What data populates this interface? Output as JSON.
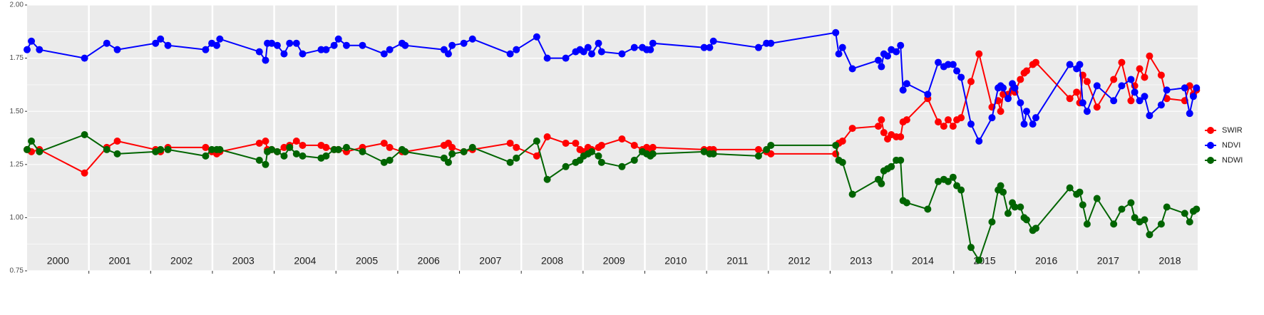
{
  "chart_data": {
    "type": "line",
    "x": [
      2000.0,
      2000.07,
      2000.2,
      2000.93,
      2001.29,
      2001.46,
      2002.08,
      2002.16,
      2002.28,
      2002.89,
      2002.99,
      2003.07,
      2003.12,
      2003.76,
      2003.86,
      2003.89,
      2003.96,
      2004.05,
      2004.16,
      2004.25,
      2004.36,
      2004.46,
      2004.76,
      2004.84,
      2004.97,
      2005.04,
      2005.17,
      2005.43,
      2005.78,
      2005.87,
      2006.07,
      2006.12,
      2006.75,
      2006.82,
      2006.88,
      2007.07,
      2007.21,
      2007.82,
      2007.92,
      2008.25,
      2008.42,
      2008.72,
      2008.88,
      2008.95,
      2009.01,
      2009.08,
      2009.14,
      2009.25,
      2009.3,
      2009.63,
      2009.83,
      2009.96,
      2010.03,
      2010.09,
      2010.13,
      2010.96,
      2011.05,
      2011.11,
      2011.84,
      2011.97,
      2012.04,
      2013.09,
      2013.14,
      2013.2,
      2013.36,
      2013.78,
      2013.83,
      2013.87,
      2013.93,
      2013.99,
      2014.07,
      2014.14,
      2014.18,
      2014.24,
      2014.58,
      2014.75,
      2014.84,
      2014.91,
      2014.99,
      2015.05,
      2015.12,
      2015.28,
      2015.41,
      2015.62,
      2015.72,
      2015.76,
      2015.8,
      2015.88,
      2015.95,
      2015.99,
      2016.08,
      2016.14,
      2016.18,
      2016.28,
      2016.33,
      2016.88,
      2016.99,
      2017.04,
      2017.09,
      2017.16,
      2017.32,
      2017.59,
      2017.72,
      2017.87,
      2017.93,
      2018.01,
      2018.09,
      2018.17,
      2018.36,
      2018.45,
      2018.74,
      2018.82,
      2018.88,
      2018.93
    ],
    "series": [
      {
        "name": "SWIR",
        "color": "#ff0000",
        "values": [
          1.32,
          1.31,
          1.32,
          1.21,
          1.33,
          1.36,
          1.32,
          1.31,
          1.33,
          1.33,
          1.31,
          1.3,
          1.31,
          1.35,
          1.36,
          1.32,
          1.32,
          1.31,
          1.33,
          1.34,
          1.36,
          1.34,
          1.34,
          1.33,
          1.32,
          1.32,
          1.31,
          1.33,
          1.35,
          1.33,
          1.31,
          1.31,
          1.34,
          1.35,
          1.33,
          1.31,
          1.32,
          1.35,
          1.33,
          1.29,
          1.38,
          1.35,
          1.35,
          1.32,
          1.31,
          1.33,
          1.32,
          1.33,
          1.34,
          1.37,
          1.34,
          1.32,
          1.33,
          1.32,
          1.33,
          1.32,
          1.32,
          1.32,
          1.32,
          1.31,
          1.3,
          1.3,
          1.35,
          1.36,
          1.42,
          1.43,
          1.46,
          1.4,
          1.37,
          1.39,
          1.38,
          1.38,
          1.45,
          1.46,
          1.56,
          1.45,
          1.43,
          1.46,
          1.43,
          1.46,
          1.47,
          1.64,
          1.77,
          1.52,
          1.55,
          1.5,
          1.58,
          1.58,
          1.6,
          1.59,
          1.65,
          1.68,
          1.69,
          1.72,
          1.73,
          1.56,
          1.59,
          1.54,
          1.67,
          1.64,
          1.52,
          1.65,
          1.73,
          1.55,
          1.62,
          1.7,
          1.66,
          1.76,
          1.67,
          1.56,
          1.55,
          1.62,
          1.58,
          1.6
        ]
      },
      {
        "name": "NDVI",
        "color": "#0000ff",
        "values": [
          1.79,
          1.83,
          1.79,
          1.75,
          1.82,
          1.79,
          1.82,
          1.84,
          1.81,
          1.79,
          1.82,
          1.81,
          1.84,
          1.78,
          1.74,
          1.82,
          1.82,
          1.81,
          1.77,
          1.82,
          1.82,
          1.77,
          1.79,
          1.79,
          1.81,
          1.84,
          1.81,
          1.81,
          1.77,
          1.79,
          1.82,
          1.81,
          1.79,
          1.77,
          1.81,
          1.82,
          1.84,
          1.77,
          1.79,
          1.85,
          1.75,
          1.75,
          1.78,
          1.79,
          1.78,
          1.8,
          1.77,
          1.82,
          1.78,
          1.77,
          1.8,
          1.8,
          1.79,
          1.79,
          1.82,
          1.8,
          1.8,
          1.83,
          1.8,
          1.82,
          1.82,
          1.87,
          1.77,
          1.8,
          1.7,
          1.74,
          1.71,
          1.77,
          1.76,
          1.79,
          1.78,
          1.81,
          1.6,
          1.63,
          1.58,
          1.73,
          1.71,
          1.72,
          1.72,
          1.69,
          1.66,
          1.44,
          1.36,
          1.47,
          1.61,
          1.62,
          1.61,
          1.56,
          1.63,
          1.61,
          1.54,
          1.44,
          1.5,
          1.44,
          1.47,
          1.72,
          1.7,
          1.72,
          1.54,
          1.5,
          1.62,
          1.55,
          1.62,
          1.65,
          1.59,
          1.55,
          1.57,
          1.48,
          1.53,
          1.6,
          1.61,
          1.49,
          1.57,
          1.61
        ]
      },
      {
        "name": "NDWI",
        "color": "#006400",
        "values": [
          1.32,
          1.36,
          1.31,
          1.39,
          1.32,
          1.3,
          1.31,
          1.32,
          1.32,
          1.29,
          1.32,
          1.32,
          1.32,
          1.27,
          1.25,
          1.31,
          1.32,
          1.31,
          1.29,
          1.33,
          1.3,
          1.29,
          1.28,
          1.29,
          1.32,
          1.32,
          1.33,
          1.31,
          1.26,
          1.27,
          1.32,
          1.31,
          1.28,
          1.26,
          1.3,
          1.31,
          1.33,
          1.26,
          1.28,
          1.36,
          1.18,
          1.24,
          1.26,
          1.27,
          1.29,
          1.3,
          1.31,
          1.29,
          1.26,
          1.24,
          1.27,
          1.31,
          1.3,
          1.29,
          1.3,
          1.31,
          1.3,
          1.3,
          1.29,
          1.32,
          1.34,
          1.34,
          1.27,
          1.26,
          1.11,
          1.18,
          1.16,
          1.22,
          1.23,
          1.24,
          1.27,
          1.27,
          1.08,
          1.07,
          1.04,
          1.17,
          1.18,
          1.17,
          1.19,
          1.15,
          1.13,
          0.86,
          0.8,
          0.98,
          1.13,
          1.15,
          1.12,
          1.02,
          1.07,
          1.05,
          1.05,
          1.0,
          0.99,
          0.94,
          0.95,
          1.14,
          1.11,
          1.12,
          1.06,
          0.97,
          1.09,
          0.97,
          1.04,
          1.07,
          1.0,
          0.98,
          0.99,
          0.92,
          0.97,
          1.05,
          1.02,
          0.98,
          1.03,
          1.04
        ]
      }
    ],
    "xlim": [
      2000,
      2018.95
    ],
    "xticks": [
      {
        "value": 2000.5,
        "label": "2000"
      },
      {
        "value": 2001.5,
        "label": "2001"
      },
      {
        "value": 2002.5,
        "label": "2002"
      },
      {
        "value": 2003.5,
        "label": "2003"
      },
      {
        "value": 2004.5,
        "label": "2004"
      },
      {
        "value": 2005.5,
        "label": "2005"
      },
      {
        "value": 2006.5,
        "label": "2006"
      },
      {
        "value": 2007.5,
        "label": "2007"
      },
      {
        "value": 2008.5,
        "label": "2008"
      },
      {
        "value": 2009.5,
        "label": "2009"
      },
      {
        "value": 2010.5,
        "label": "2010"
      },
      {
        "value": 2011.5,
        "label": "2011"
      },
      {
        "value": 2012.5,
        "label": "2012"
      },
      {
        "value": 2013.5,
        "label": "2013"
      },
      {
        "value": 2014.5,
        "label": "2014"
      },
      {
        "value": 2015.5,
        "label": "2015"
      },
      {
        "value": 2016.5,
        "label": "2016"
      },
      {
        "value": 2017.5,
        "label": "2017"
      },
      {
        "value": 2018.5,
        "label": "2018"
      }
    ],
    "xgrid": [
      2001,
      2002,
      2003,
      2004,
      2005,
      2006,
      2007,
      2008,
      2009,
      2010,
      2011,
      2012,
      2013,
      2014,
      2015,
      2016,
      2017,
      2018
    ],
    "ylim": [
      0.75,
      2.0
    ],
    "yticks": [
      {
        "value": 0.75,
        "label": "0.75"
      },
      {
        "value": 1.0,
        "label": "1.00"
      },
      {
        "value": 1.25,
        "label": "1.25"
      },
      {
        "value": 1.5,
        "label": "1.50"
      },
      {
        "value": 1.75,
        "label": "1.75"
      },
      {
        "value": 2.0,
        "label": "2.00"
      }
    ],
    "grid": true,
    "legend": "right"
  }
}
